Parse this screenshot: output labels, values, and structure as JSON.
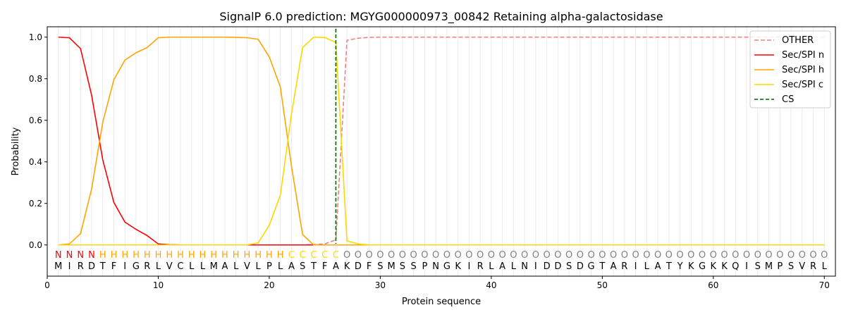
{
  "chart_data": {
    "type": "line",
    "title": "SignalP 6.0 prediction: MGYG000000973_00842 Retaining alpha-galactosidase",
    "xlabel": "Protein sequence",
    "ylabel": "Probability",
    "xlim": [
      0,
      71
    ],
    "ylim": [
      -0.15,
      1.05
    ],
    "xticks": [
      0,
      10,
      20,
      30,
      40,
      50,
      60,
      70
    ],
    "yticks": [
      "0.0",
      "0.2",
      "0.4",
      "0.6",
      "0.8",
      "1.0"
    ],
    "legend_position": "top-right",
    "sequence": [
      "M",
      "I",
      "R",
      "D",
      "T",
      "F",
      "I",
      "G",
      "R",
      "L",
      "V",
      "C",
      "L",
      "L",
      "M",
      "A",
      "L",
      "V",
      "L",
      "P",
      "L",
      "A",
      "S",
      "T",
      "F",
      "A",
      "K",
      "D",
      "F",
      "S",
      "M",
      "S",
      "S",
      "P",
      "N",
      "G",
      "K",
      "I",
      "R",
      "L",
      "A",
      "L",
      "N",
      "I",
      "D",
      "D",
      "S",
      "D",
      "G",
      "T",
      "A",
      "R",
      "I",
      "L",
      "A",
      "T",
      "Y",
      "K",
      "G",
      "K",
      "K",
      "Q",
      "I",
      "S",
      "M",
      "P",
      "S",
      "V",
      "R",
      "L"
    ],
    "labels": [
      "N",
      "N",
      "N",
      "N",
      "H",
      "H",
      "H",
      "H",
      "H",
      "H",
      "H",
      "H",
      "H",
      "H",
      "H",
      "H",
      "H",
      "H",
      "H",
      "H",
      "H",
      "C",
      "C",
      "C",
      "C",
      "C",
      "O",
      "O",
      "O",
      "O",
      "O",
      "O",
      "O",
      "O",
      "O",
      "O",
      "O",
      "O",
      "O",
      "O",
      "O",
      "O",
      "O",
      "O",
      "O",
      "O",
      "O",
      "O",
      "O",
      "O",
      "O",
      "O",
      "O",
      "O",
      "O",
      "O",
      "O",
      "O",
      "O",
      "O",
      "O",
      "O",
      "O",
      "O",
      "O",
      "O",
      "O",
      "O",
      "O",
      "O"
    ],
    "label_colors": {
      "N": "#ff0000",
      "H": "#ffa500",
      "C": "#ffd700",
      "O": "#808080"
    },
    "cs_position": 26,
    "series": [
      {
        "name": "OTHER",
        "color": "#f08080",
        "dash": true,
        "values": [
          0,
          0,
          0,
          0,
          0,
          0,
          0,
          0,
          0,
          0,
          0,
          0,
          0,
          0,
          0,
          0,
          0,
          0,
          0,
          0,
          0,
          0,
          0,
          0.002,
          0.005,
          0.025,
          0.985,
          0.995,
          0.999,
          1,
          1,
          1,
          1,
          1,
          1,
          1,
          1,
          1,
          1,
          1,
          1,
          1,
          1,
          1,
          1,
          1,
          1,
          1,
          1,
          1,
          1,
          1,
          1,
          1,
          1,
          1,
          1,
          1,
          1,
          1,
          1,
          1,
          1,
          1,
          1,
          1,
          1,
          1,
          1,
          1
        ]
      },
      {
        "name": "Sec/SPI n",
        "color": "#ff0000",
        "values": [
          1.0,
          0.997,
          0.945,
          0.72,
          0.41,
          0.205,
          0.11,
          0.075,
          0.045,
          0.005,
          0.001,
          0,
          0,
          0,
          0,
          0,
          0,
          0,
          0,
          0,
          0,
          0,
          0,
          0,
          0,
          0,
          0,
          0,
          0,
          0,
          0,
          0,
          0,
          0,
          0,
          0,
          0,
          0,
          0,
          0,
          0,
          0,
          0,
          0,
          0,
          0,
          0,
          0,
          0,
          0,
          0,
          0,
          0,
          0,
          0,
          0,
          0,
          0,
          0,
          0,
          0,
          0,
          0,
          0,
          0,
          0,
          0,
          0,
          0,
          0
        ]
      },
      {
        "name": "Sec/SPI h",
        "color": "#ffa500",
        "values": [
          0,
          0.005,
          0.055,
          0.27,
          0.59,
          0.795,
          0.89,
          0.925,
          0.95,
          0.997,
          1.0,
          1.0,
          1.0,
          1.0,
          1.0,
          1.0,
          0.999,
          0.997,
          0.99,
          0.905,
          0.76,
          0.38,
          0.05,
          0,
          0,
          0,
          0,
          0,
          0,
          0,
          0,
          0,
          0,
          0,
          0,
          0,
          0,
          0,
          0,
          0,
          0,
          0,
          0,
          0,
          0,
          0,
          0,
          0,
          0,
          0,
          0,
          0,
          0,
          0,
          0,
          0,
          0,
          0,
          0,
          0,
          0,
          0,
          0,
          0,
          0,
          0,
          0,
          0,
          0,
          0
        ]
      },
      {
        "name": "Sec/SPI c",
        "color": "#ffd700",
        "values": [
          0,
          0,
          0,
          0,
          0,
          0,
          0,
          0,
          0,
          0,
          0,
          0,
          0,
          0,
          0,
          0,
          0,
          0,
          0.01,
          0.095,
          0.24,
          0.63,
          0.95,
          1.0,
          0.998,
          0.975,
          0.02,
          0.005,
          0,
          0,
          0,
          0,
          0,
          0,
          0,
          0,
          0,
          0,
          0,
          0,
          0,
          0,
          0,
          0,
          0,
          0,
          0,
          0,
          0,
          0,
          0,
          0,
          0,
          0,
          0,
          0,
          0,
          0,
          0,
          0,
          0,
          0,
          0,
          0,
          0,
          0,
          0,
          0,
          0,
          0
        ]
      }
    ],
    "cs_legend": {
      "name": "CS",
      "color": "#006400"
    }
  }
}
